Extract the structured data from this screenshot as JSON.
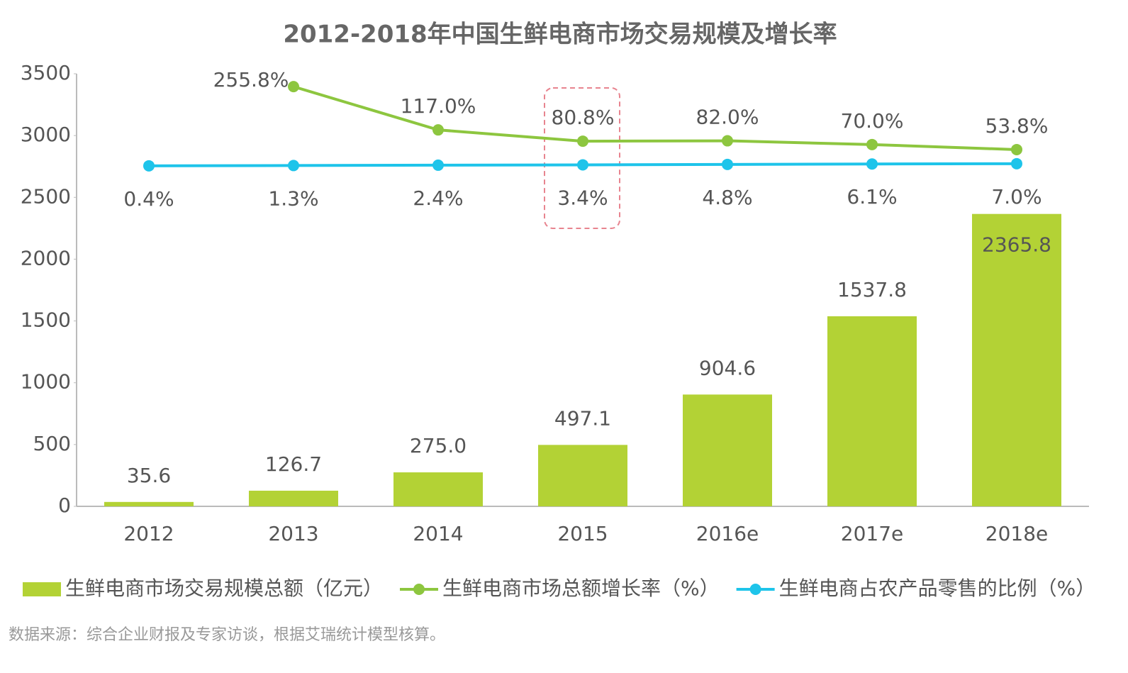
{
  "chart_data": {
    "type": "bar",
    "title": "2012-2018年中国生鲜电商市场交易规模及增长率",
    "categories": [
      "2012",
      "2013",
      "2014",
      "2015",
      "2016e",
      "2017e",
      "2018e"
    ],
    "series": [
      {
        "name": "生鲜电商市场交易规模总额（亿元）",
        "type": "bar",
        "color": "#b3d235",
        "values": [
          35.6,
          126.7,
          275.0,
          497.1,
          904.6,
          1537.8,
          2365.8
        ],
        "value_labels": [
          "35.6",
          "126.7",
          "275.0",
          "497.1",
          "904.6",
          "1537.8",
          "2365.8"
        ]
      },
      {
        "name": "生鲜电商市场总额增长率（%）",
        "type": "line",
        "axis": "y2",
        "color": "#8dc63f",
        "values": [
          null,
          255.8,
          117.0,
          80.8,
          82.0,
          70.0,
          53.8
        ],
        "value_labels": [
          null,
          "255.8%",
          "117.0%",
          "80.8%",
          "82.0%",
          "70.0%",
          "53.8%"
        ]
      },
      {
        "name": "生鲜电商占农产品零售的比例（%）",
        "type": "line",
        "axis": "y3",
        "color": "#1ec4ea",
        "values": [
          0.4,
          1.3,
          2.4,
          3.4,
          4.8,
          6.1,
          7.0
        ],
        "value_labels": [
          "0.4%",
          "1.3%",
          "2.4%",
          "3.4%",
          "4.8%",
          "6.1%",
          "7.0%"
        ]
      }
    ],
    "ylim": [
      0,
      3500
    ],
    "yticks": [
      0,
      500,
      1000,
      1500,
      2000,
      2500,
      3000,
      3500
    ],
    "y2lim": [
      -1090,
      297
    ],
    "y3lim": [
      -1056,
      286
    ],
    "grid": false,
    "source": "数据来源：综合企业财报及专家访谈，根据艾瑞统计模型核算。"
  }
}
